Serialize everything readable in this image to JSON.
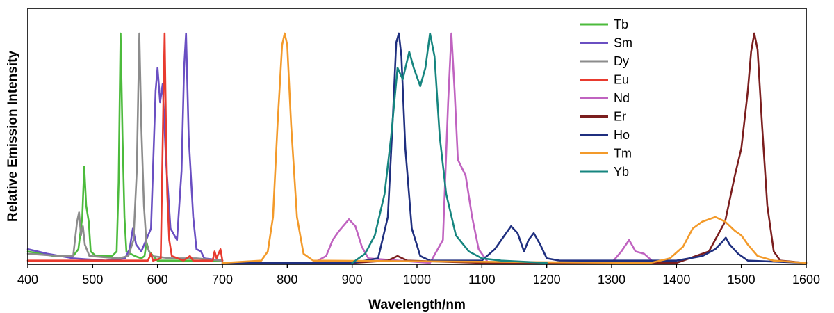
{
  "chart_data": {
    "type": "line",
    "title": "",
    "xlabel": "Wavelength/nm",
    "ylabel": "Relative Emission Intensity",
    "xlim": [
      400,
      1600
    ],
    "ylim": [
      0,
      1
    ],
    "x_ticks": [
      "400",
      "500",
      "600",
      "700",
      "800",
      "900",
      "1000",
      "1100",
      "1200",
      "1300",
      "1400",
      "1500",
      "1600"
    ],
    "y_ticks": [],
    "grid": false,
    "legend_position": "top-center",
    "series": [
      {
        "name": "Tb",
        "color": "#4cbb3c",
        "points": [
          [
            400,
            0.05
          ],
          [
            440,
            0.03
          ],
          [
            470,
            0.03
          ],
          [
            478,
            0.06
          ],
          [
            484,
            0.2
          ],
          [
            487,
            0.42
          ],
          [
            490,
            0.25
          ],
          [
            494,
            0.18
          ],
          [
            497,
            0.05
          ],
          [
            505,
            0.03
          ],
          [
            530,
            0.03
          ],
          [
            537,
            0.05
          ],
          [
            540,
            0.35
          ],
          [
            543,
            1.0
          ],
          [
            546,
            0.55
          ],
          [
            549,
            0.2
          ],
          [
            552,
            0.05
          ],
          [
            565,
            0.03
          ],
          [
            575,
            0.02
          ],
          [
            580,
            0.03
          ],
          [
            583,
            0.09
          ],
          [
            587,
            0.05
          ],
          [
            600,
            0.01
          ],
          [
            640,
            0.01
          ],
          [
            700,
            0.01
          ]
        ]
      },
      {
        "name": "Sm",
        "color": "#6a4fc2",
        "points": [
          [
            400,
            0.06
          ],
          [
            430,
            0.04
          ],
          [
            470,
            0.02
          ],
          [
            520,
            0.01
          ],
          [
            550,
            0.02
          ],
          [
            557,
            0.06
          ],
          [
            562,
            0.15
          ],
          [
            567,
            0.08
          ],
          [
            575,
            0.05
          ],
          [
            590,
            0.15
          ],
          [
            597,
            0.75
          ],
          [
            600,
            0.85
          ],
          [
            604,
            0.7
          ],
          [
            608,
            0.78
          ],
          [
            613,
            0.45
          ],
          [
            620,
            0.15
          ],
          [
            630,
            0.1
          ],
          [
            637,
            0.4
          ],
          [
            641,
            0.85
          ],
          [
            644,
            1.0
          ],
          [
            648,
            0.55
          ],
          [
            655,
            0.2
          ],
          [
            660,
            0.06
          ],
          [
            667,
            0.05
          ],
          [
            672,
            0.02
          ],
          [
            700,
            0.01
          ]
        ]
      },
      {
        "name": "Dy",
        "color": "#8c8c8c",
        "points": [
          [
            400,
            0.04
          ],
          [
            450,
            0.03
          ],
          [
            470,
            0.03
          ],
          [
            476,
            0.18
          ],
          [
            479,
            0.22
          ],
          [
            482,
            0.12
          ],
          [
            485,
            0.16
          ],
          [
            488,
            0.08
          ],
          [
            495,
            0.03
          ],
          [
            540,
            0.02
          ],
          [
            555,
            0.03
          ],
          [
            563,
            0.1
          ],
          [
            568,
            0.4
          ],
          [
            572,
            1.0
          ],
          [
            575,
            0.6
          ],
          [
            579,
            0.25
          ],
          [
            583,
            0.08
          ],
          [
            590,
            0.03
          ],
          [
            620,
            0.02
          ],
          [
            660,
            0.02
          ],
          [
            700,
            0.01
          ]
        ]
      },
      {
        "name": "Eu",
        "color": "#e83a2e",
        "points": [
          [
            400,
            0.01
          ],
          [
            570,
            0.01
          ],
          [
            585,
            0.01
          ],
          [
            590,
            0.04
          ],
          [
            593,
            0.01
          ],
          [
            605,
            0.02
          ],
          [
            609,
            0.7
          ],
          [
            611,
            1.0
          ],
          [
            613,
            0.6
          ],
          [
            615,
            0.3
          ],
          [
            618,
            0.1
          ],
          [
            622,
            0.03
          ],
          [
            640,
            0.01
          ],
          [
            650,
            0.03
          ],
          [
            655,
            0.01
          ],
          [
            685,
            0.01
          ],
          [
            688,
            0.05
          ],
          [
            691,
            0.02
          ],
          [
            697,
            0.06
          ],
          [
            700,
            0.01
          ]
        ]
      },
      {
        "name": "Nd",
        "color": "#c063c0",
        "points": [
          [
            840,
            0.0
          ],
          [
            860,
            0.03
          ],
          [
            870,
            0.1
          ],
          [
            880,
            0.14
          ],
          [
            895,
            0.19
          ],
          [
            905,
            0.16
          ],
          [
            915,
            0.07
          ],
          [
            925,
            0.02
          ],
          [
            1020,
            0.0
          ],
          [
            1040,
            0.1
          ],
          [
            1048,
            0.7
          ],
          [
            1053,
            1.0
          ],
          [
            1058,
            0.75
          ],
          [
            1063,
            0.45
          ],
          [
            1075,
            0.38
          ],
          [
            1085,
            0.2
          ],
          [
            1095,
            0.06
          ],
          [
            1110,
            0.0
          ],
          [
            1300,
            0.0
          ],
          [
            1315,
            0.05
          ],
          [
            1327,
            0.1
          ],
          [
            1337,
            0.05
          ],
          [
            1350,
            0.04
          ],
          [
            1362,
            0.01
          ],
          [
            1375,
            0.0
          ]
        ]
      },
      {
        "name": "Er",
        "color": "#7b1e1e",
        "points": [
          [
            900,
            0.0
          ],
          [
            955,
            0.01
          ],
          [
            970,
            0.03
          ],
          [
            985,
            0.01
          ],
          [
            1100,
            0.0
          ],
          [
            1400,
            0.0
          ],
          [
            1450,
            0.05
          ],
          [
            1475,
            0.18
          ],
          [
            1490,
            0.38
          ],
          [
            1500,
            0.5
          ],
          [
            1510,
            0.75
          ],
          [
            1515,
            0.92
          ],
          [
            1520,
            1.0
          ],
          [
            1525,
            0.93
          ],
          [
            1532,
            0.6
          ],
          [
            1540,
            0.25
          ],
          [
            1550,
            0.05
          ],
          [
            1560,
            0.01
          ],
          [
            1600,
            0.0
          ]
        ]
      },
      {
        "name": "Ho",
        "color": "#1f2f7f",
        "points": [
          [
            700,
            0.0
          ],
          [
            900,
            0.0
          ],
          [
            940,
            0.02
          ],
          [
            955,
            0.2
          ],
          [
            963,
            0.65
          ],
          [
            968,
            0.96
          ],
          [
            972,
            1.0
          ],
          [
            976,
            0.9
          ],
          [
            982,
            0.5
          ],
          [
            992,
            0.15
          ],
          [
            1005,
            0.03
          ],
          [
            1020,
            0.01
          ],
          [
            1100,
            0.01
          ],
          [
            1120,
            0.06
          ],
          [
            1135,
            0.12
          ],
          [
            1145,
            0.16
          ],
          [
            1155,
            0.13
          ],
          [
            1165,
            0.05
          ],
          [
            1172,
            0.1
          ],
          [
            1180,
            0.13
          ],
          [
            1190,
            0.08
          ],
          [
            1200,
            0.02
          ],
          [
            1220,
            0.01
          ],
          [
            1400,
            0.01
          ],
          [
            1440,
            0.03
          ],
          [
            1460,
            0.06
          ],
          [
            1470,
            0.09
          ],
          [
            1476,
            0.11
          ],
          [
            1482,
            0.08
          ],
          [
            1495,
            0.04
          ],
          [
            1510,
            0.01
          ],
          [
            1600,
            0.0
          ]
        ]
      },
      {
        "name": "Tm",
        "color": "#f39a2a",
        "points": [
          [
            700,
            0.0
          ],
          [
            760,
            0.01
          ],
          [
            770,
            0.05
          ],
          [
            778,
            0.2
          ],
          [
            785,
            0.6
          ],
          [
            792,
            0.95
          ],
          [
            796,
            1.0
          ],
          [
            800,
            0.95
          ],
          [
            806,
            0.6
          ],
          [
            815,
            0.2
          ],
          [
            825,
            0.04
          ],
          [
            840,
            0.01
          ],
          [
            1360,
            0.0
          ],
          [
            1390,
            0.02
          ],
          [
            1410,
            0.07
          ],
          [
            1425,
            0.15
          ],
          [
            1440,
            0.18
          ],
          [
            1460,
            0.2
          ],
          [
            1475,
            0.18
          ],
          [
            1490,
            0.14
          ],
          [
            1500,
            0.12
          ],
          [
            1510,
            0.08
          ],
          [
            1525,
            0.03
          ],
          [
            1550,
            0.01
          ],
          [
            1600,
            0.0
          ]
        ]
      },
      {
        "name": "Yb",
        "color": "#16857f",
        "points": [
          [
            900,
            0.0
          ],
          [
            920,
            0.04
          ],
          [
            935,
            0.12
          ],
          [
            950,
            0.3
          ],
          [
            960,
            0.55
          ],
          [
            970,
            0.85
          ],
          [
            978,
            0.8
          ],
          [
            988,
            0.92
          ],
          [
            995,
            0.85
          ],
          [
            1005,
            0.77
          ],
          [
            1013,
            0.85
          ],
          [
            1020,
            1.0
          ],
          [
            1027,
            0.9
          ],
          [
            1035,
            0.55
          ],
          [
            1045,
            0.3
          ],
          [
            1060,
            0.12
          ],
          [
            1080,
            0.05
          ],
          [
            1100,
            0.02
          ],
          [
            1130,
            0.01
          ],
          [
            1200,
            0.0
          ]
        ]
      }
    ]
  }
}
